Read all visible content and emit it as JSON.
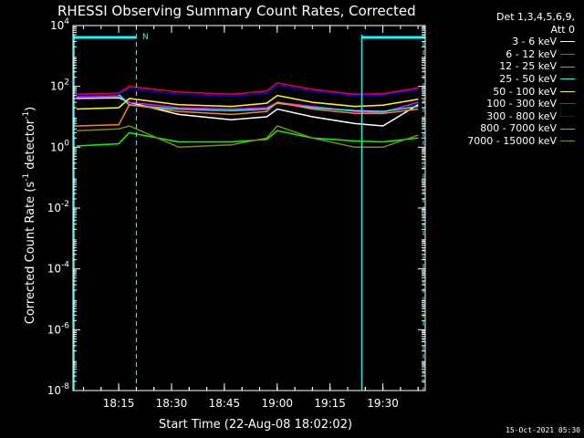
{
  "chart_data": {
    "type": "line",
    "title": "RHESSI Observing Summary Count Rates, Corrected",
    "xlabel": "Start Time (22-Aug-08 18:02:02)",
    "ylabel_main": "Corrected Count Rate (s",
    "ylabel_sup1": "-1",
    "ylabel_mid": " detector",
    "ylabel_sup2": "-1",
    "ylabel_end": ")",
    "x_start": "18:02:02",
    "x_range_minutes": [
      0,
      100
    ],
    "y_scale": "log",
    "ylim": [
      1e-08,
      10000.0
    ],
    "y_ticks": [
      {
        "base": "10",
        "exp": "-8",
        "value": 1e-08
      },
      {
        "base": "10",
        "exp": "-6",
        "value": 1e-06
      },
      {
        "base": "10",
        "exp": "-4",
        "value": 0.0001
      },
      {
        "base": "10",
        "exp": "-2",
        "value": 0.01
      },
      {
        "base": "10",
        "exp": "0",
        "value": 1
      },
      {
        "base": "10",
        "exp": "2",
        "value": 100
      },
      {
        "base": "10",
        "exp": "4",
        "value": 10000
      }
    ],
    "x_ticks": [
      {
        "label": "18:15",
        "minute": 12.97
      },
      {
        "label": "18:30",
        "minute": 27.97
      },
      {
        "label": "18:45",
        "minute": 42.97
      },
      {
        "label": "19:00",
        "minute": 57.97
      },
      {
        "label": "19:15",
        "minute": 72.97
      },
      {
        "label": "19:30",
        "minute": 87.97
      }
    ],
    "legend_header": [
      "Det 1,3,4,5,6,9,",
      "Att 0"
    ],
    "legend_placement": "right",
    "n_marker": "N",
    "series": [
      {
        "name": "3 - 6 keV",
        "color": "#ffffff",
        "values": [
          40,
          42,
          30,
          12,
          8,
          10,
          18,
          10,
          6,
          5,
          25
        ]
      },
      {
        "name": "6 - 12 keV",
        "color": "#ff00ff",
        "values": [
          45,
          48,
          30,
          20,
          18,
          20,
          30,
          22,
          15,
          14,
          30
        ]
      },
      {
        "name": "12 - 25 keV",
        "color": "#00ff00",
        "values": [
          1.1,
          1.3,
          3.0,
          1.5,
          1.5,
          1.8,
          3.5,
          2.0,
          1.6,
          1.5,
          2.0
        ]
      },
      {
        "name": "25 - 50 keV",
        "color": "#00ffff",
        "values": [
          50,
          55,
          24,
          18,
          16,
          18,
          28,
          20,
          16,
          15,
          22
        ]
      },
      {
        "name": "50 - 100 keV",
        "color": "#ffff00",
        "values": [
          18,
          20,
          40,
          25,
          22,
          28,
          50,
          30,
          22,
          24,
          38
        ]
      },
      {
        "name": "100 - 300 keV",
        "color": "#ff0000",
        "values": [
          55,
          60,
          100,
          65,
          55,
          70,
          130,
          80,
          55,
          58,
          90
        ]
      },
      {
        "name": "300 - 800 keV",
        "color": "#0000ff",
        "values": [
          50,
          55,
          85,
          55,
          48,
          60,
          110,
          70,
          50,
          52,
          80
        ]
      },
      {
        "name": "800 - 7000 keV",
        "color": "#ff8800",
        "values": [
          5,
          5.5,
          25,
          15,
          12,
          15,
          30,
          18,
          13,
          13,
          18
        ]
      },
      {
        "name": "7000 - 15000 keV",
        "color": "#888800",
        "values": [
          3.5,
          4.0,
          5.0,
          1.0,
          1.2,
          2.0,
          5.0,
          2.0,
          1.0,
          1.0,
          2.5
        ]
      }
    ],
    "series_minutes": [
      1,
      13,
      16,
      30,
      45,
      55,
      58,
      68,
      80,
      88,
      98
    ],
    "cyan_night_bars": [
      {
        "start_minute": 0,
        "end_minute": 18
      },
      {
        "start_minute": 82,
        "end_minute": 100
      }
    ],
    "cyan_dashed_verticals_minutes": [
      18,
      100
    ],
    "cyan_solid_verticals_minutes": [
      0,
      82
    ]
  },
  "stamp": "15-Oct-2021 05:30",
  "colors": {
    "background": "#000000",
    "axes": "#ffffff",
    "night": "#00ffff"
  }
}
